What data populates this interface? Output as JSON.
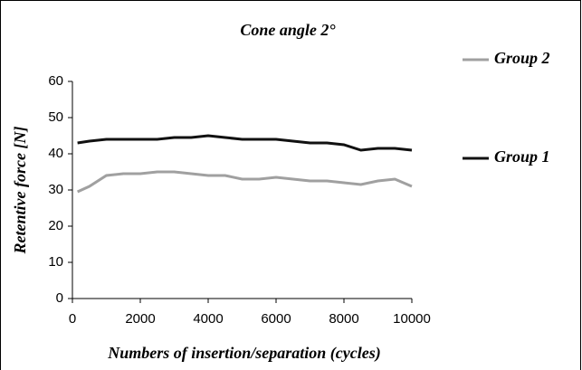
{
  "chart_data": {
    "type": "line",
    "title": "Cone angle 2°",
    "xlabel": "Numbers of insertion/separation (cycles)",
    "ylabel": "Retentive force [N]",
    "x": [
      150,
      500,
      1000,
      1500,
      2000,
      2500,
      3000,
      3500,
      4000,
      4500,
      5000,
      5500,
      6000,
      6500,
      7000,
      7500,
      8000,
      8500,
      9000,
      9500,
      10000
    ],
    "series": [
      {
        "name": "Group 2",
        "color": "#a0a0a0",
        "values": [
          29.5,
          31,
          34,
          34.5,
          34.5,
          35,
          35,
          34.5,
          34,
          34,
          33,
          33,
          33.5,
          33,
          32.5,
          32.5,
          32,
          31.5,
          32.5,
          33,
          31
        ]
      },
      {
        "name": "Group 1",
        "color": "#111111",
        "values": [
          43,
          43.5,
          44,
          44,
          44,
          44,
          44.5,
          44.5,
          45,
          44.5,
          44,
          44,
          44,
          43.5,
          43,
          43,
          42.5,
          41,
          41.5,
          41.5,
          41
        ]
      }
    ],
    "xlim": [
      0,
      10000
    ],
    "xticks": [
      0,
      2000,
      4000,
      6000,
      8000,
      10000
    ],
    "ylim": [
      0,
      60
    ],
    "yticks": [
      0,
      10,
      20,
      30,
      40,
      50,
      60
    ],
    "grid": false,
    "legend": "right"
  }
}
